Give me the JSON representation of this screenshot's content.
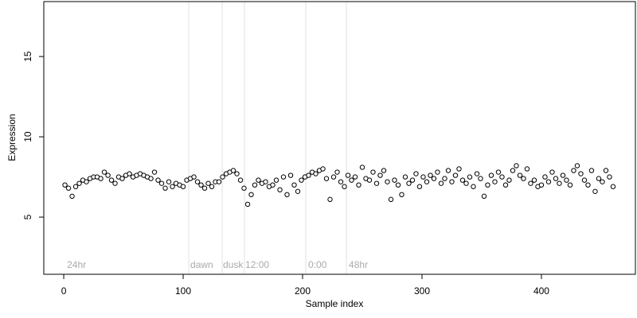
{
  "chart_data": {
    "type": "scatter",
    "xlabel": "Sample index",
    "ylabel": "Expression",
    "xlim": [
      -16.7,
      478.7
    ],
    "ylim": [
      1.44,
      18.42
    ],
    "xticks": [
      0,
      100,
      200,
      300,
      400
    ],
    "yticks": [
      5,
      10,
      15
    ],
    "point_color": "#000000",
    "point_fill": "#ffffff",
    "vline_color": "#e0e0e0",
    "vlines": [
      104.7,
      132.7,
      151.3,
      202.7,
      236.7
    ],
    "annotations": [
      {
        "text": "24hr",
        "x": 2.7,
        "y": 2
      },
      {
        "text": "dawn",
        "x": 106,
        "y": 2
      },
      {
        "text": "dusk",
        "x": 133.3,
        "y": 2
      },
      {
        "text": "12:00",
        "x": 152,
        "y": 2
      },
      {
        "text": "0:00",
        "x": 204.7,
        "y": 2
      },
      {
        "text": "48hr",
        "x": 238.7,
        "y": 2
      }
    ],
    "x": [
      1,
      4,
      7,
      10,
      13,
      16,
      19,
      22,
      25,
      28,
      31,
      34,
      37,
      40,
      43,
      46,
      49,
      52,
      55,
      58,
      61,
      64,
      67,
      70,
      73,
      76,
      79,
      82,
      85,
      88,
      91,
      94,
      97,
      100,
      103,
      106,
      109,
      112,
      115,
      118,
      121,
      124,
      127,
      130,
      133,
      136,
      139,
      142,
      145,
      148,
      151,
      154,
      157,
      160,
      163,
      166,
      169,
      172,
      175,
      178,
      181,
      184,
      187,
      190,
      193,
      196,
      199,
      202,
      205,
      208,
      211,
      214,
      217,
      220,
      223,
      226,
      229,
      232,
      235,
      238,
      241,
      244,
      247,
      250,
      253,
      256,
      259,
      262,
      265,
      268,
      271,
      274,
      277,
      280,
      283,
      286,
      289,
      292,
      295,
      298,
      301,
      304,
      307,
      310,
      313,
      316,
      319,
      322,
      325,
      328,
      331,
      334,
      337,
      340,
      343,
      346,
      349,
      352,
      355,
      358,
      361,
      364,
      367,
      370,
      373,
      376,
      379,
      382,
      385,
      388,
      391,
      394,
      397,
      400,
      403,
      406,
      409,
      412,
      415,
      418,
      421,
      424,
      427,
      430,
      433,
      436,
      439,
      442,
      445,
      448,
      451,
      454,
      457,
      460
    ],
    "values": [
      7.0,
      6.8,
      6.3,
      6.9,
      7.1,
      7.3,
      7.2,
      7.4,
      7.5,
      7.5,
      7.4,
      7.8,
      7.6,
      7.3,
      7.1,
      7.5,
      7.4,
      7.6,
      7.7,
      7.5,
      7.6,
      7.7,
      7.6,
      7.5,
      7.4,
      7.8,
      7.3,
      7.1,
      6.8,
      7.2,
      6.9,
      7.1,
      7.0,
      6.9,
      7.3,
      7.4,
      7.5,
      7.2,
      7.0,
      6.8,
      7.1,
      6.9,
      7.2,
      7.2,
      7.5,
      7.7,
      7.8,
      7.9,
      7.7,
      7.3,
      6.8,
      5.8,
      6.4,
      7.0,
      7.3,
      7.1,
      7.2,
      6.9,
      7.0,
      7.3,
      6.7,
      7.5,
      6.4,
      7.6,
      7.0,
      6.6,
      7.3,
      7.5,
      7.6,
      7.8,
      7.7,
      7.9,
      8.0,
      7.4,
      6.1,
      7.5,
      7.8,
      7.2,
      6.9,
      7.6,
      7.3,
      7.5,
      7.0,
      8.1,
      7.4,
      7.3,
      7.8,
      7.1,
      7.6,
      7.9,
      7.2,
      6.1,
      7.3,
      7.0,
      6.4,
      7.5,
      7.1,
      7.3,
      7.7,
      6.9,
      7.5,
      7.2,
      7.6,
      7.4,
      7.8,
      7.1,
      7.4,
      7.9,
      7.2,
      7.6,
      8.0,
      7.3,
      7.1,
      7.5,
      6.9,
      7.7,
      7.4,
      6.3,
      7.0,
      7.6,
      7.2,
      7.8,
      7.5,
      7.0,
      7.3,
      7.9,
      8.2,
      7.6,
      7.4,
      8.0,
      7.1,
      7.3,
      6.9,
      7.0,
      7.5,
      7.2,
      7.8,
      7.4,
      7.1,
      7.6,
      7.3,
      7.0,
      7.9,
      8.2,
      7.7,
      7.3,
      7.0,
      7.9,
      6.6,
      7.4,
      7.2,
      7.9,
      7.5,
      6.9
    ]
  }
}
